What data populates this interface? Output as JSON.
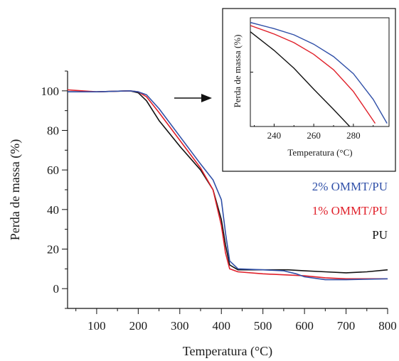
{
  "chart_data": [
    {
      "type": "line",
      "xlabel": "Temperatura (°C)",
      "ylabel": "Perda de massa (%)",
      "xlim": [
        30,
        800
      ],
      "ylim": [
        -10,
        110
      ],
      "xticks": [
        100,
        200,
        300,
        400,
        500,
        600,
        700,
        800
      ],
      "yticks": [
        0,
        20,
        40,
        60,
        80,
        100
      ],
      "legend_position": "right",
      "series": [
        {
          "name": "PU",
          "color": "#111111",
          "x": [
            30,
            100,
            180,
            200,
            220,
            250,
            300,
            350,
            380,
            400,
            410,
            420,
            440,
            500,
            560,
            600,
            650,
            700,
            750,
            800
          ],
          "y": [
            99.5,
            99.5,
            100,
            99,
            95,
            85,
            72,
            60,
            50,
            35,
            22,
            12,
            9.5,
            9.5,
            9.5,
            9,
            8.5,
            8,
            8.5,
            9.5
          ]
        },
        {
          "name": "1% OMMT/PU",
          "color": "#e0202a",
          "x": [
            30,
            100,
            180,
            200,
            220,
            250,
            300,
            350,
            380,
            400,
            410,
            420,
            440,
            500,
            550,
            600,
            650,
            700,
            750,
            800
          ],
          "y": [
            100.5,
            99.5,
            100,
            99.5,
            97,
            89,
            75,
            61,
            50,
            32,
            18,
            10,
            8.5,
            7.5,
            7,
            6.5,
            5.5,
            5,
            5,
            5
          ]
        },
        {
          "name": "2% OMMT/PU",
          "color": "#3050a8",
          "x": [
            30,
            100,
            180,
            200,
            220,
            250,
            300,
            350,
            380,
            400,
            410,
            420,
            440,
            500,
            550,
            580,
            600,
            650,
            700,
            800
          ],
          "y": [
            99.5,
            99.5,
            100,
            99.5,
            98,
            91,
            77,
            63,
            55,
            45,
            28,
            14,
            10,
            9.5,
            9,
            7.5,
            6,
            4.5,
            4.5,
            5
          ]
        }
      ]
    },
    {
      "type": "line",
      "xlabel": "Temperatura (°C)",
      "ylabel": "Perda de massa (%)",
      "xlim": [
        228,
        298
      ],
      "ylim": [
        86,
        100
      ],
      "xticks": [
        240,
        260,
        280
      ],
      "series": [
        {
          "name": "PU",
          "color": "#111111",
          "x": [
            228,
            240,
            250,
            260,
            270,
            280
          ],
          "y": [
            98.2,
            95.8,
            93.5,
            90.8,
            88.2,
            85.5
          ]
        },
        {
          "name": "1% OMMT/PU",
          "color": "#e0202a",
          "x": [
            228,
            240,
            250,
            260,
            270,
            280,
            291
          ],
          "y": [
            99.0,
            97.9,
            96.8,
            95.3,
            93.3,
            90.5,
            86.4
          ]
        },
        {
          "name": "2% OMMT/PU",
          "color": "#3050a8",
          "x": [
            228,
            240,
            250,
            260,
            270,
            280,
            290,
            297
          ],
          "y": [
            99.4,
            98.6,
            97.8,
            96.6,
            95.0,
            92.8,
            89.5,
            86.4
          ]
        }
      ]
    }
  ]
}
